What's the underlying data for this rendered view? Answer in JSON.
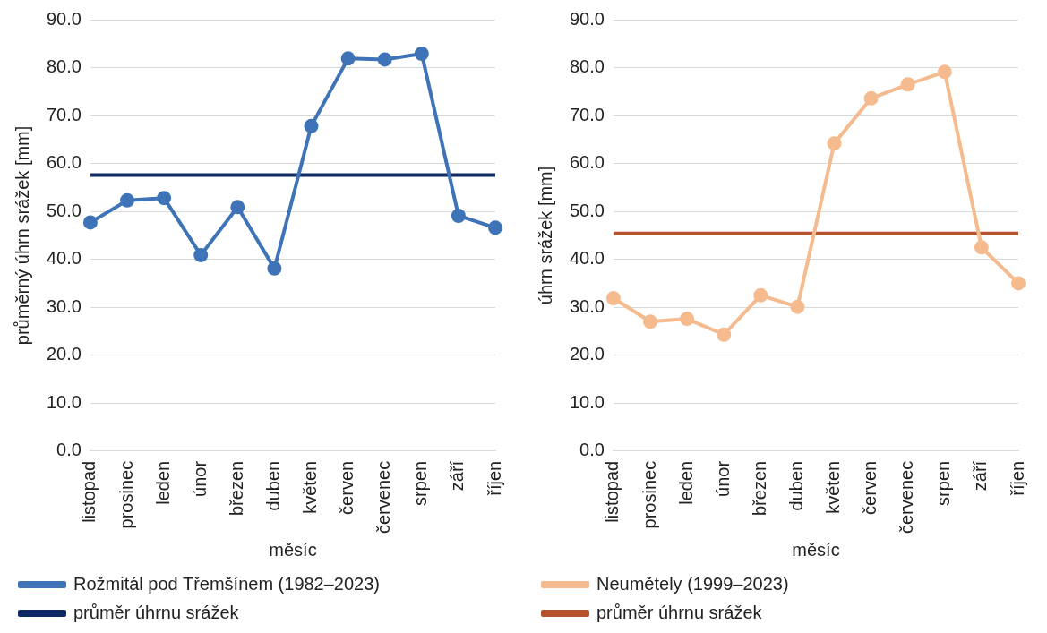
{
  "chart_data": [
    {
      "type": "line",
      "xlabel": "měsíc",
      "ylabel": "průměrný úhrn srážek [mm]",
      "categories": [
        "listopad",
        "prosinec",
        "leden",
        "únor",
        "březen",
        "duben",
        "květen",
        "červen",
        "červenec",
        "srpen",
        "září",
        "říjen"
      ],
      "series": [
        {
          "name": "Rožmitál pod Třemšínem (1982–2023)",
          "color": "#3f73b8",
          "marker": "circle",
          "values": [
            47.7,
            52.3,
            52.8,
            40.9,
            50.9,
            38.1,
            67.8,
            81.9,
            81.7,
            82.9,
            49.1,
            46.6
          ]
        },
        {
          "name": "průměr úhrnu srážek",
          "color": "#0e2a66",
          "marker": "none",
          "values": [
            57.6,
            57.6,
            57.6,
            57.6,
            57.6,
            57.6,
            57.6,
            57.6,
            57.6,
            57.6,
            57.6,
            57.6
          ]
        }
      ],
      "ylim": [
        0,
        90
      ],
      "yticks": [
        {
          "value": 0,
          "label": "0.0"
        },
        {
          "value": 10,
          "label": "10.0"
        },
        {
          "value": 20,
          "label": "20.0"
        },
        {
          "value": 30,
          "label": "30.0"
        },
        {
          "value": 40,
          "label": "40.0"
        },
        {
          "value": 50,
          "label": "50.0"
        },
        {
          "value": 60,
          "label": "60.0"
        },
        {
          "value": 70,
          "label": "70.0"
        },
        {
          "value": 80,
          "label": "80.0"
        },
        {
          "value": 90,
          "label": "90.0"
        }
      ],
      "grid": "y",
      "legend": "bottom"
    },
    {
      "type": "line",
      "xlabel": "měsíc",
      "ylabel": "úhrn srážek [mm]",
      "categories": [
        "listopad",
        "prosinec",
        "leden",
        "únor",
        "březen",
        "duben",
        "květen",
        "červen",
        "červenec",
        "srpen",
        "září",
        "říjen"
      ],
      "series": [
        {
          "name": "Neumětely (1999–2023)",
          "color": "#f5bb8e",
          "marker": "circle",
          "values": [
            31.9,
            27.0,
            27.6,
            24.3,
            32.5,
            30.1,
            64.2,
            73.6,
            76.5,
            79.1,
            42.5,
            35.0
          ]
        },
        {
          "name": "průměr úhrnu srážek",
          "color": "#b5532e",
          "marker": "none",
          "values": [
            45.4,
            45.4,
            45.4,
            45.4,
            45.4,
            45.4,
            45.4,
            45.4,
            45.4,
            45.4,
            45.4,
            45.4
          ]
        }
      ],
      "ylim": [
        0,
        90
      ],
      "yticks": [
        {
          "value": 0,
          "label": "0.0"
        },
        {
          "value": 10,
          "label": "10.0"
        },
        {
          "value": 20,
          "label": "20.0"
        },
        {
          "value": 30,
          "label": "30.0"
        },
        {
          "value": 40,
          "label": "40.0"
        },
        {
          "value": 50,
          "label": "50.0"
        },
        {
          "value": 60,
          "label": "60.0"
        },
        {
          "value": 70,
          "label": "70.0"
        },
        {
          "value": 80,
          "label": "80.0"
        },
        {
          "value": 90,
          "label": "90.0"
        }
      ],
      "grid": "y",
      "legend": "bottom"
    }
  ]
}
